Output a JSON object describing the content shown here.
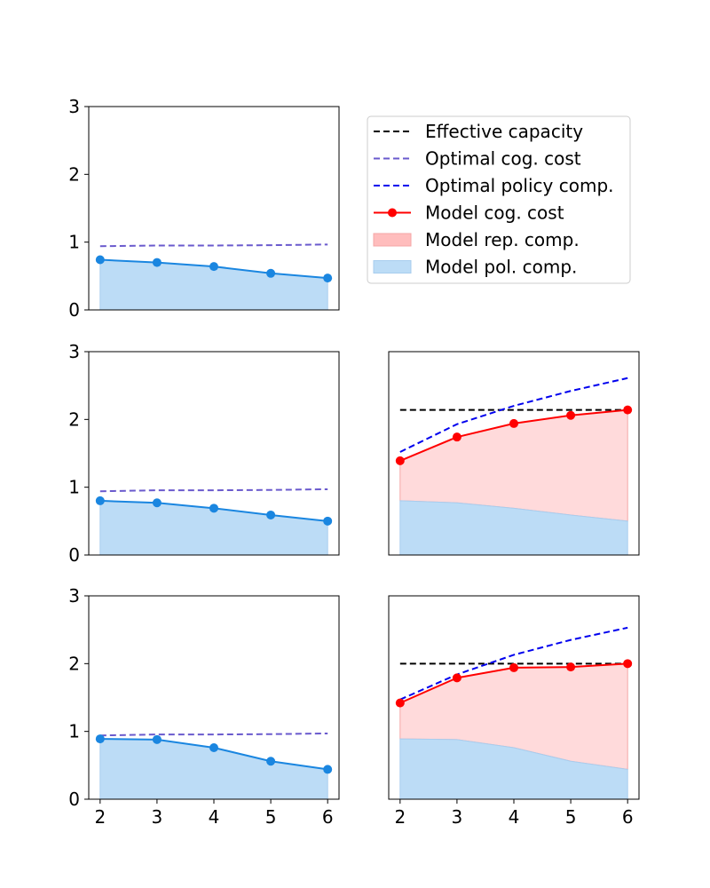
{
  "legend": {
    "placement": "upper-right",
    "entries": [
      {
        "label": "Effective capacity",
        "style": "dashed-line",
        "color": "#000000"
      },
      {
        "label": "Optimal cog. cost",
        "style": "dashed-line",
        "color": "#6a5acd"
      },
      {
        "label": "Optimal policy comp.",
        "style": "dashed-line",
        "color": "#0000ee"
      },
      {
        "label": "Model cog. cost",
        "style": "line-marker",
        "color": "#ff0000"
      },
      {
        "label": "Model rep. comp.",
        "style": "area",
        "color": "#ffbdbd"
      },
      {
        "label": "Model pol. comp.",
        "style": "area",
        "color": "#bcdcf6"
      }
    ]
  },
  "chart_data": [
    {
      "type": "area",
      "panel": "row1-left",
      "x": [
        2,
        3,
        4,
        5,
        6
      ],
      "xlim": [
        1.8,
        6.2
      ],
      "ylim": [
        0,
        3
      ],
      "yticks": [
        0,
        1,
        2,
        3
      ],
      "xticks_visible": false,
      "yticks_visible": true,
      "series": [
        {
          "name": "Optimal cog. cost",
          "values": [
            0.94,
            0.95,
            0.95,
            0.955,
            0.965
          ]
        },
        {
          "name": "Model pol. comp.",
          "values": [
            0.74,
            0.7,
            0.64,
            0.54,
            0.47
          ]
        }
      ]
    },
    {
      "type": "area",
      "panel": "row2-left",
      "x": [
        2,
        3,
        4,
        5,
        6
      ],
      "xlim": [
        1.8,
        6.2
      ],
      "ylim": [
        0,
        3
      ],
      "yticks": [
        0,
        1,
        2,
        3
      ],
      "xticks_visible": false,
      "yticks_visible": true,
      "series": [
        {
          "name": "Optimal cog. cost",
          "values": [
            0.94,
            0.955,
            0.955,
            0.96,
            0.97
          ]
        },
        {
          "name": "Model pol. comp.",
          "values": [
            0.8,
            0.77,
            0.69,
            0.59,
            0.5
          ]
        }
      ]
    },
    {
      "type": "area",
      "panel": "row2-right",
      "x": [
        2,
        3,
        4,
        5,
        6
      ],
      "xlim": [
        1.8,
        6.2
      ],
      "ylim": [
        0,
        3
      ],
      "yticks": [
        0,
        1,
        2,
        3
      ],
      "xticks_visible": false,
      "yticks_visible": false,
      "series": [
        {
          "name": "Effective capacity",
          "values": [
            2.14,
            2.14,
            2.14,
            2.14,
            2.14
          ]
        },
        {
          "name": "Optimal policy comp.",
          "values": [
            1.52,
            1.93,
            2.2,
            2.42,
            2.61
          ]
        },
        {
          "name": "Model cog. cost",
          "values": [
            1.39,
            1.74,
            1.94,
            2.06,
            2.14
          ]
        },
        {
          "name": "Model pol. comp.",
          "values": [
            0.8,
            0.77,
            0.69,
            0.59,
            0.5
          ]
        }
      ]
    },
    {
      "type": "area",
      "panel": "row3-left",
      "x": [
        2,
        3,
        4,
        5,
        6
      ],
      "xlim": [
        1.8,
        6.2
      ],
      "ylim": [
        0,
        3
      ],
      "yticks": [
        0,
        1,
        2,
        3
      ],
      "xticks": [
        "2",
        "3",
        "4",
        "5",
        "6"
      ],
      "xticks_visible": true,
      "yticks_visible": true,
      "series": [
        {
          "name": "Optimal cog. cost",
          "values": [
            0.94,
            0.955,
            0.955,
            0.96,
            0.97
          ]
        },
        {
          "name": "Model pol. comp.",
          "values": [
            0.89,
            0.88,
            0.76,
            0.56,
            0.44
          ]
        }
      ]
    },
    {
      "type": "area",
      "panel": "row3-right",
      "x": [
        2,
        3,
        4,
        5,
        6
      ],
      "xlim": [
        1.8,
        6.2
      ],
      "ylim": [
        0,
        3
      ],
      "yticks": [
        0,
        1,
        2,
        3
      ],
      "xticks": [
        "2",
        "3",
        "4",
        "5",
        "6"
      ],
      "xticks_visible": true,
      "yticks_visible": false,
      "series": [
        {
          "name": "Effective capacity",
          "values": [
            2.0,
            2.0,
            2.0,
            2.0,
            2.0
          ]
        },
        {
          "name": "Optimal policy comp.",
          "values": [
            1.47,
            1.84,
            2.13,
            2.35,
            2.53
          ]
        },
        {
          "name": "Model cog. cost",
          "values": [
            1.42,
            1.79,
            1.94,
            1.95,
            2.0
          ]
        },
        {
          "name": "Model pol. comp.",
          "values": [
            0.89,
            0.88,
            0.76,
            0.56,
            0.44
          ]
        }
      ]
    }
  ]
}
